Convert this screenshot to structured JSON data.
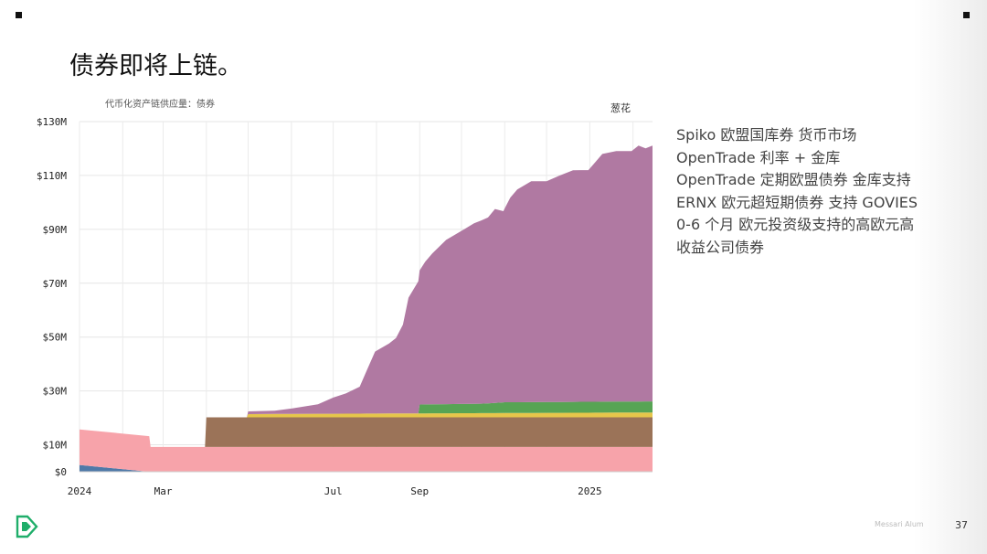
{
  "slide": {
    "title": "债券即将上链。",
    "page_number": "37",
    "watermark": "Messari Alum"
  },
  "notes": [
    "Spiko 欧盟国库券 货币市场",
    "OpenTrade 利率 + 金库",
    "OpenTrade 定期欧盟债券 金库支持",
    "ERNX 欧元超短期债券 支持 GOVIES",
    "0-6 个月 欧元投资级支持的高欧元高",
    "收益公司债券"
  ],
  "colors": {
    "pink": "#f7a3aa",
    "steel_blue": "#4f79a8",
    "brown": "#9b7358",
    "yellow": "#e6c64a",
    "green": "#57a454",
    "purple": "#b079a2",
    "logo_green": "#1fae6a"
  },
  "chart_data": {
    "type": "area",
    "subtitle": "代币化资产链供应量：债券",
    "source_label": "葱花",
    "x_ticks": [
      {
        "date": "2024-01-01",
        "label": "2024"
      },
      {
        "date": "2024-03-01",
        "label": "Mar"
      },
      {
        "date": "2024-07-01",
        "label": "Jul"
      },
      {
        "date": "2024-09-01",
        "label": "Sep"
      },
      {
        "date": "2025-01-01",
        "label": "2025"
      }
    ],
    "y_ticks": [
      {
        "value": 0,
        "label": "$0"
      },
      {
        "value": 10,
        "label": "$10M"
      },
      {
        "value": 30,
        "label": "$30M"
      },
      {
        "value": 50,
        "label": "$50M"
      },
      {
        "value": 70,
        "label": "$70M"
      },
      {
        "value": 90,
        "label": "$90M"
      },
      {
        "value": 110,
        "label": "$110M"
      },
      {
        "value": 130,
        "label": "$130M"
      }
    ],
    "xlim": [
      "2024-01-01",
      "2025-02-15"
    ],
    "ylim": [
      0,
      130
    ],
    "grid": true,
    "stacked": true,
    "series": [
      {
        "color_key": "steel_blue",
        "points": [
          [
            "2024-01-01",
            2.5
          ],
          [
            "2024-02-20",
            2.5
          ],
          [
            "2024-02-20",
            0
          ],
          [
            "2025-02-15",
            0
          ]
        ]
      },
      {
        "color_key": "pink",
        "points": [
          [
            "2024-01-01",
            13.2
          ],
          [
            "2024-02-20",
            13.2
          ],
          [
            "2024-02-21",
            9.2
          ],
          [
            "2024-04-01",
            9.2
          ],
          [
            "2024-04-01",
            9.2
          ],
          [
            "2025-02-15",
            9.2
          ]
        ]
      },
      {
        "color_key": "brown",
        "points": [
          [
            "2024-01-01",
            0
          ],
          [
            "2024-03-31",
            0
          ],
          [
            "2024-04-01",
            11
          ],
          [
            "2025-02-15",
            11
          ]
        ]
      },
      {
        "color_key": "yellow",
        "points": [
          [
            "2024-01-01",
            0
          ],
          [
            "2024-04-30",
            0
          ],
          [
            "2024-05-01",
            1.2
          ],
          [
            "2025-02-15",
            1.8
          ]
        ]
      },
      {
        "color_key": "green",
        "points": [
          [
            "2024-01-01",
            0
          ],
          [
            "2024-08-31",
            0
          ],
          [
            "2024-09-01",
            3.3
          ],
          [
            "2024-10-15",
            3.5
          ],
          [
            "2024-11-01",
            4
          ],
          [
            "2025-02-15",
            4.1
          ]
        ]
      },
      {
        "color_key": "purple",
        "points": [
          [
            "2024-01-01",
            0
          ],
          [
            "2024-04-30",
            0
          ],
          [
            "2024-05-01",
            1
          ],
          [
            "2024-05-20",
            1.2
          ],
          [
            "2024-06-01",
            2
          ],
          [
            "2024-06-20",
            3.5
          ],
          [
            "2024-07-01",
            6
          ],
          [
            "2024-07-10",
            7.5
          ],
          [
            "2024-07-20",
            10
          ],
          [
            "2024-07-25",
            16
          ],
          [
            "2024-07-31",
            23
          ],
          [
            "2024-08-10",
            26
          ],
          [
            "2024-08-15",
            28
          ],
          [
            "2024-08-20",
            33
          ],
          [
            "2024-08-24",
            43
          ],
          [
            "2024-08-31",
            49
          ],
          [
            "2024-09-05",
            53
          ],
          [
            "2024-09-10",
            56
          ],
          [
            "2024-09-20",
            61
          ],
          [
            "2024-09-30",
            64
          ],
          [
            "2024-10-10",
            67
          ],
          [
            "2024-10-20",
            69
          ],
          [
            "2024-10-25",
            72
          ],
          [
            "2024-10-31",
            71
          ],
          [
            "2024-11-05",
            76
          ],
          [
            "2024-11-10",
            79
          ],
          [
            "2024-11-20",
            82
          ],
          [
            "2024-12-01",
            82
          ],
          [
            "2024-12-10",
            84
          ],
          [
            "2024-12-20",
            86
          ],
          [
            "2024-12-31",
            86
          ],
          [
            "2025-01-05",
            89
          ],
          [
            "2025-01-10",
            92
          ],
          [
            "2025-01-20",
            93
          ],
          [
            "2025-01-31",
            93
          ],
          [
            "2025-02-05",
            95
          ],
          [
            "2025-02-10",
            94
          ],
          [
            "2025-02-15",
            95
          ]
        ]
      }
    ]
  }
}
